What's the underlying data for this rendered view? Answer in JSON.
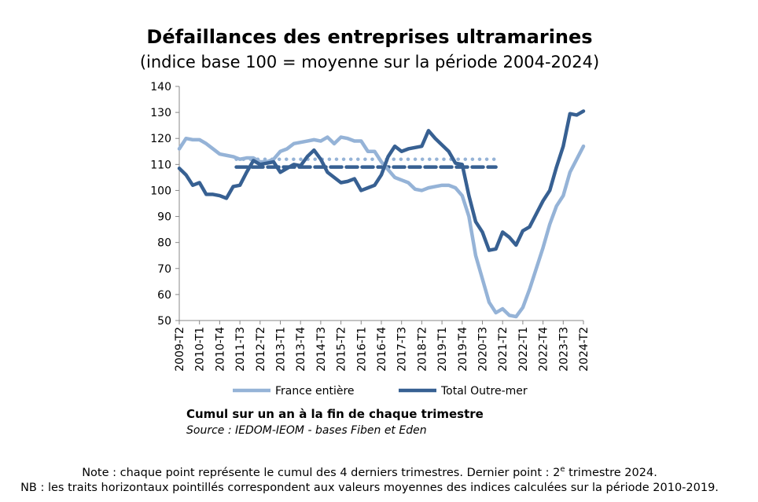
{
  "chart_data": {
    "type": "line",
    "title": "Défaillances des entreprises ultramarines",
    "subtitle": "(indice base 100 = moyenne sur la période 2004-2024)",
    "categories": [
      "2009-T2",
      null,
      null,
      "2010-T1",
      null,
      null,
      "2010-T4",
      null,
      null,
      "2011-T3",
      null,
      null,
      "2012-T2",
      null,
      null,
      "2013-T1",
      null,
      null,
      "2013-T4",
      null,
      null,
      "2014-T3",
      null,
      null,
      "2015-T2",
      null,
      null,
      "2016-T1",
      null,
      null,
      "2016-T4",
      null,
      null,
      "2017-T3",
      null,
      null,
      "2018-T2",
      null,
      null,
      "2019-T1",
      null,
      null,
      "2019-T4",
      null,
      null,
      "2020-T3",
      null,
      null,
      "2021-T2",
      null,
      null,
      "2022-T1",
      null,
      null,
      "2022-T4",
      null,
      null,
      "2023-T3",
      null,
      null,
      "2024-T2"
    ],
    "series": [
      {
        "name": "France entière",
        "color": "#95b3d7",
        "values": [
          116,
          120,
          119.5,
          119.5,
          118,
          116,
          114,
          113.5,
          113,
          112,
          112.5,
          112.5,
          111,
          111,
          112,
          115,
          116,
          118,
          118.5,
          119,
          119.5,
          119,
          120.5,
          118,
          120.5,
          120,
          119,
          119,
          115,
          115,
          111,
          108,
          105,
          104,
          103,
          100.5,
          100,
          101,
          101.5,
          102,
          102,
          101,
          98,
          90,
          75,
          66,
          57,
          53,
          54.5,
          52,
          51.5,
          55,
          62,
          70,
          78,
          87,
          94,
          98,
          107,
          112,
          117
        ]
      },
      {
        "name": "Total Outre-mer",
        "color": "#376092",
        "values": [
          108.5,
          106,
          102,
          103,
          98.5,
          98.5,
          98,
          97,
          101.5,
          102,
          107,
          111.5,
          110,
          110.5,
          111,
          107,
          108.5,
          110,
          109.5,
          113,
          115.5,
          112,
          107,
          105,
          103,
          103.5,
          104.5,
          100,
          101,
          102,
          106,
          113,
          117,
          115,
          116,
          116.5,
          117,
          123,
          120,
          117.5,
          115,
          110.5,
          110,
          98,
          88,
          84,
          77,
          77.5,
          84,
          82,
          79,
          84.5,
          86,
          91,
          96,
          100,
          109,
          117,
          129.5,
          129,
          130.5
        ]
      }
    ],
    "reference_lines": [
      {
        "value": 112,
        "color": "#95b3d7",
        "dash": "dotted"
      },
      {
        "value": 109,
        "color": "#376092",
        "dash": "dashed"
      }
    ],
    "ylim": [
      50,
      140
    ],
    "yticks": [
      50,
      60,
      70,
      80,
      90,
      100,
      110,
      120,
      130,
      140
    ],
    "grid": false,
    "legend": "bottom",
    "caption": "Cumul sur un an à la fin de chaque trimestre",
    "source": "Source : IEDOM-IEOM - bases Fiben et Eden",
    "note_before": "Note : chaque point représente le cumul des 4 derniers trimestres. Dernier point : 2",
    "note_sup": "e",
    "note_after": " trimestre 2024.",
    "nb": "NB : les traits horizontaux pointillés correspondent aux valeurs moyennes des indices calculées sur la période 2010-2019."
  }
}
